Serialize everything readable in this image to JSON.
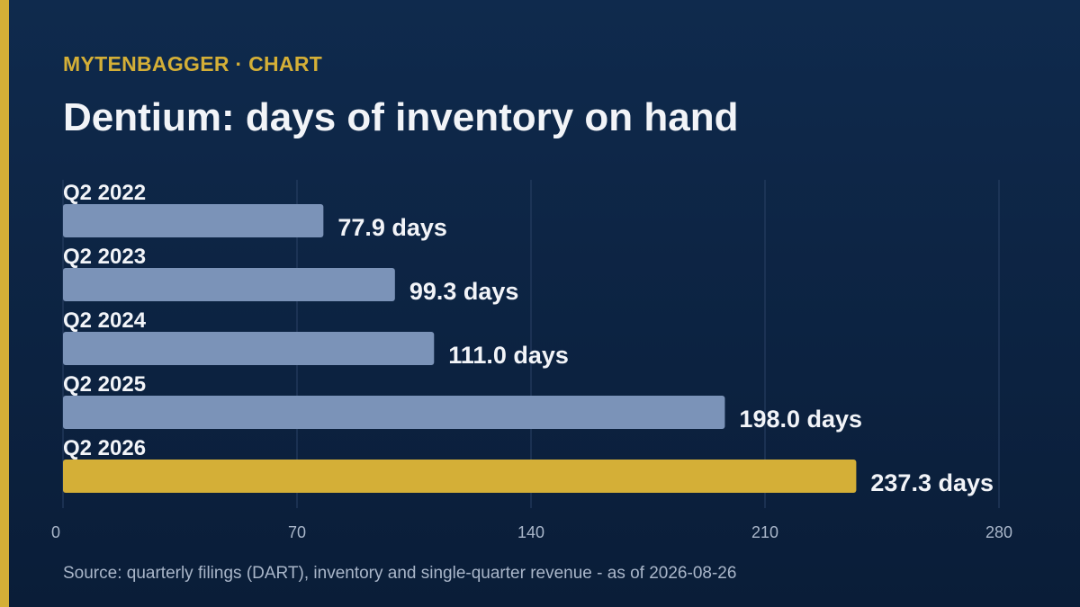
{
  "header": {
    "brand": "MYTENBAGGER · CHART",
    "title": "Dentium: days of inventory on hand"
  },
  "footer": {
    "source": "Source: quarterly filings (DART), inventory and single-quarter revenue - as of 2026-08-26"
  },
  "colors": {
    "accent": "#d4af37",
    "bar": "#7b93b8",
    "highlight_bar": "#d4af37",
    "background": "#0d2443",
    "grid": "#2b4266"
  },
  "chart_data": {
    "type": "bar",
    "orientation": "horizontal",
    "categories": [
      "Q2 2022",
      "Q2 2023",
      "Q2 2024",
      "Q2 2025",
      "Q2 2026"
    ],
    "values": [
      77.9,
      99.3,
      111.0,
      198.0,
      237.3
    ],
    "value_labels": [
      "77.9 days",
      "99.3 days",
      "111.0 days",
      "198.0 days",
      "237.3 days"
    ],
    "highlight_index": 4,
    "xlim": [
      0,
      280
    ],
    "xticks": [
      0,
      70,
      140,
      210,
      280
    ],
    "grid": true
  }
}
